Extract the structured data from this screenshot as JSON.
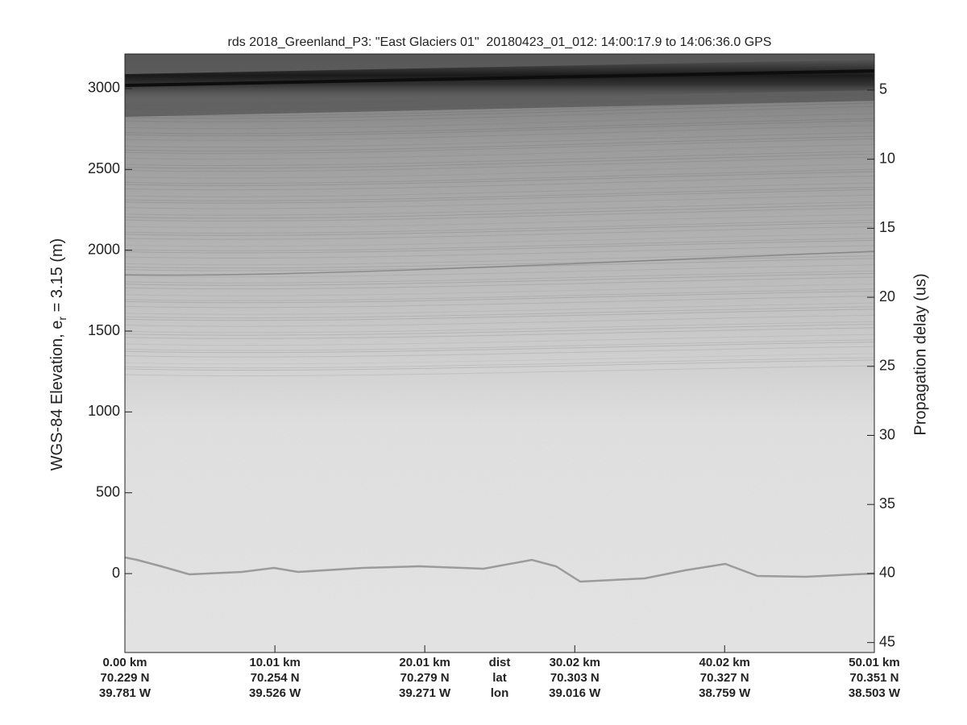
{
  "chart_data": {
    "type": "radargram",
    "title": "rds 2018_Greenland_P3: \"East Glaciers 01\"  20180423_01_012: 14:00:17.9 to 14:06:36.0 GPS",
    "ylabel": [
      "WGS-84 Elevation, e",
      "r",
      " = 3.15 (m)"
    ],
    "y2label": "Propagation delay (us)",
    "ylim": [
      -488,
      3214
    ],
    "yticks": [
      0,
      500,
      1000,
      1500,
      2000,
      2500,
      3000
    ],
    "y2lim": [
      45.72,
      2.38
    ],
    "y2ticks": [
      5,
      10,
      15,
      20,
      25,
      30,
      35,
      40,
      45
    ],
    "xlim": [
      0,
      50.01
    ],
    "xticks": [
      {
        "value": 0,
        "label": "0.00 km"
      },
      {
        "value": 10.01,
        "label": "10.01 km"
      },
      {
        "value": 20.01,
        "label": "20.01 km"
      },
      {
        "value": 30.02,
        "label": "30.02 km"
      },
      {
        "value": 40.02,
        "label": "40.02 km"
      },
      {
        "value": 50.01,
        "label": "50.01 km"
      }
    ],
    "row_labels": [
      "dist",
      "lat",
      "lon"
    ],
    "lat_labels": [
      "70.229 N",
      "70.254 N",
      "70.279 N",
      "70.303 N",
      "70.327 N",
      "70.351 N"
    ],
    "lon_labels": [
      "39.781 W",
      "39.526 W",
      "39.271 W",
      "39.016 W",
      "38.759 W",
      "38.503 W"
    ]
  }
}
